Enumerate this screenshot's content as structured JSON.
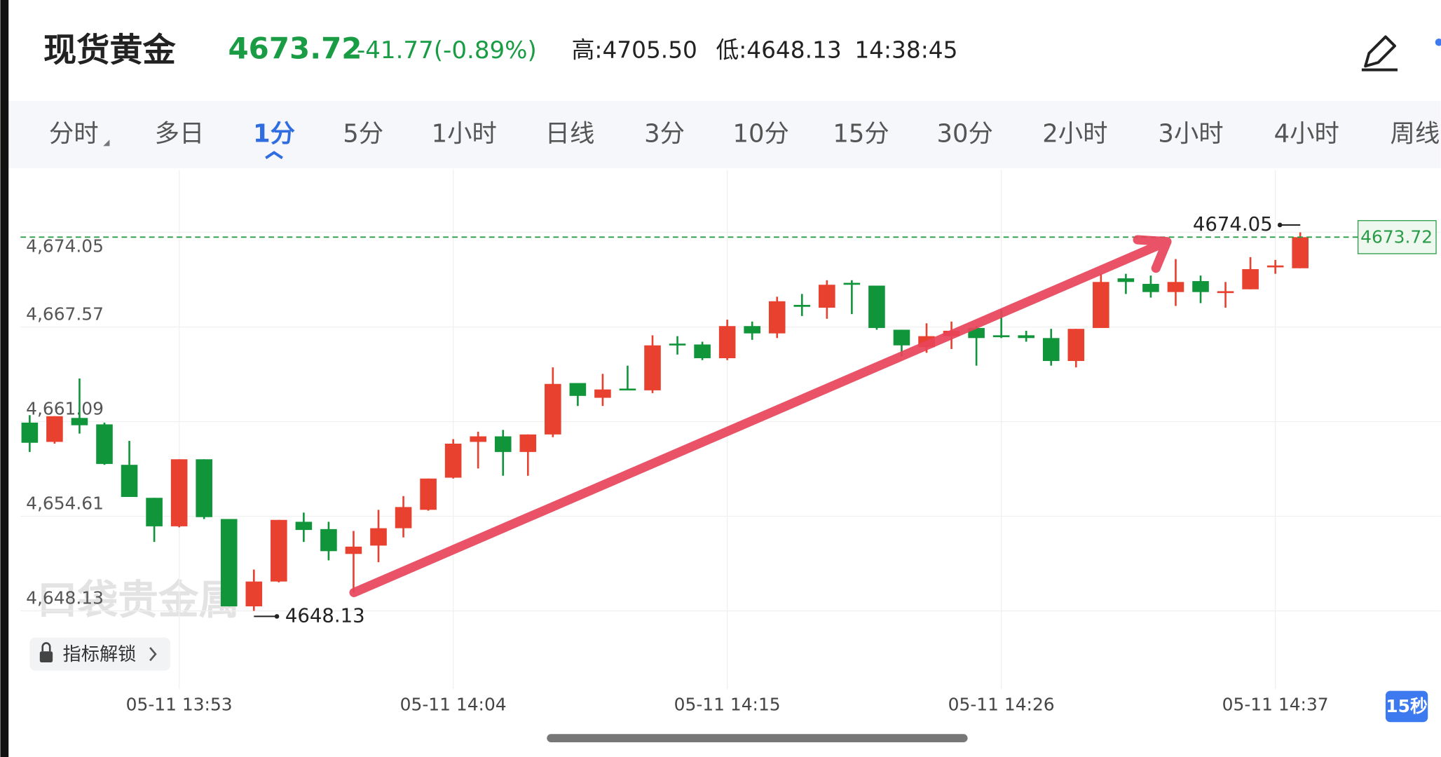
{
  "header": {
    "title": "现货黄金",
    "price": "4673.72",
    "change": "-41.77(-0.89%)",
    "high": "高:4705.50",
    "low": "低:4648.13",
    "time": "14:38:45"
  },
  "tabs": [
    "分时",
    "多日",
    "1分",
    "5分",
    "1小时",
    "日线",
    "3分",
    "10分",
    "15分",
    "30分",
    "2小时",
    "3小时",
    "4小时",
    "周线"
  ],
  "active_tab": 2,
  "button": "指标解锁",
  "badge": "15秒",
  "chart_data": {
    "type": "candlestick",
    "watermark": "口袋贵金属",
    "categories": [
      null,
      null,
      null,
      null,
      null,
      null,
      "05-11 13:53",
      null,
      null,
      null,
      null,
      null,
      null,
      null,
      null,
      null,
      null,
      "05-11 14:04",
      null,
      null,
      null,
      null,
      null,
      null,
      null,
      null,
      null,
      null,
      "05-11 14:15",
      null,
      null,
      null,
      null,
      null,
      null,
      null,
      null,
      null,
      null,
      "05-11 14:26",
      null,
      null,
      null,
      null,
      null,
      null,
      null,
      null,
      null,
      null,
      "05-11 14:37",
      null
    ],
    "open": [
      4661.02,
      4659.7,
      4661.34,
      4660.9,
      4658.13,
      4655.87,
      4653.92,
      4658.51,
      4654.42,
      4648.44,
      4650.14,
      4654.23,
      4653.73,
      4652.03,
      4652.6,
      4653.79,
      4655.05,
      4657.25,
      4659.7,
      4660.08,
      4659.01,
      4660.21,
      4663.73,
      4662.72,
      4663.35,
      4663.23,
      4666.43,
      4666.37,
      4665.43,
      4667.63,
      4667.13,
      4669.08,
      4668.89,
      4670.59,
      4670.4,
      4667.38,
      4666.18,
      4666.94,
      4667.5,
      4667.0,
      4667.0,
      4666.81,
      4665.24,
      4667.5,
      4670.9,
      4670.52,
      4669.96,
      4670.71,
      4669.89,
      4670.15,
      4671.65,
      4671.59
    ],
    "high": [
      4661.53,
      4661.46,
      4664.04,
      4661.02,
      4659.77,
      4655.87,
      4658.51,
      4658.51,
      4654.42,
      4650.96,
      4654.36,
      4654.86,
      4654.23,
      4653.6,
      4655.05,
      4655.99,
      4657.19,
      4659.89,
      4660.4,
      4660.52,
      4660.21,
      4664.8,
      4663.73,
      4664.36,
      4664.92,
      4667.0,
      4666.94,
      4666.56,
      4668.07,
      4667.94,
      4669.64,
      4669.83,
      4670.77,
      4670.77,
      4670.4,
      4667.38,
      4667.82,
      4667.94,
      4667.63,
      4668.76,
      4667.31,
      4667.44,
      4667.44,
      4671.21,
      4671.21,
      4671.09,
      4672.22,
      4671.09,
      4670.65,
      4672.35,
      4672.16,
      4674.05
    ],
    "low": [
      4659.01,
      4659.58,
      4660.27,
      4658.13,
      4655.93,
      4652.85,
      4653.85,
      4654.42,
      4648.44,
      4648.13,
      4650.08,
      4652.85,
      4651.59,
      4649.39,
      4651.46,
      4653.16,
      4654.99,
      4657.19,
      4657.88,
      4657.38,
      4657.38,
      4660.02,
      4662.16,
      4662.16,
      4663.23,
      4663.04,
      4665.68,
      4665.3,
      4665.3,
      4666.69,
      4666.81,
      4668.32,
      4668.13,
      4668.45,
      4667.38,
      4665.55,
      4665.8,
      4666.06,
      4664.92,
      4666.81,
      4666.56,
      4664.92,
      4664.8,
      4667.5,
      4669.83,
      4669.58,
      4669.01,
      4669.2,
      4668.89,
      4670.15,
      4671.21,
      4671.59
    ],
    "close": [
      4659.64,
      4661.46,
      4660.84,
      4658.19,
      4655.93,
      4653.92,
      4658.51,
      4654.55,
      4648.44,
      4650.14,
      4654.36,
      4653.67,
      4652.22,
      4652.53,
      4653.79,
      4655.24,
      4657.19,
      4659.58,
      4660.08,
      4659.01,
      4660.21,
      4663.67,
      4662.85,
      4663.29,
      4663.23,
      4666.31,
      4666.31,
      4665.43,
      4667.63,
      4667.13,
      4669.33,
      4668.95,
      4670.46,
      4670.46,
      4667.5,
      4666.31,
      4666.94,
      4667.31,
      4666.81,
      4666.87,
      4666.81,
      4665.24,
      4667.44,
      4670.65,
      4670.65,
      4669.96,
      4670.65,
      4669.96,
      4670.02,
      4671.53,
      4671.78,
      4673.72
    ],
    "up_color": "#e8412f",
    "down_color": "#10953a",
    "ylim": [
      4642.78,
      4678.32
    ],
    "yticks": [
      {
        "value": 4648.13,
        "label": "4,648.13"
      },
      {
        "value": 4654.61,
        "label": "4,654.61"
      },
      {
        "value": 4661.09,
        "label": "4,661.09"
      },
      {
        "value": 4667.57,
        "label": "4,667.57"
      },
      {
        "value": 4674.05,
        "label": "4,674.05"
      }
    ],
    "grid": true,
    "max_marker": 4674.05,
    "min_marker": 4648.13,
    "last_price": 4673.72
  }
}
